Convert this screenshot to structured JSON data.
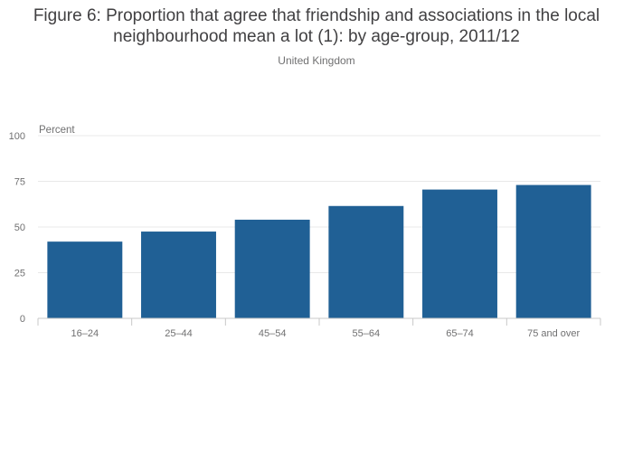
{
  "chart_data": {
    "type": "bar",
    "title": "Figure 6: Proportion that agree that friendship and associations in the local neighbourhood mean a lot (1): by age-group, 2011/12",
    "subtitle": "United Kingdom",
    "ylabel": "Percent",
    "xlabel": "",
    "categories": [
      "16–24",
      "25–44",
      "45–54",
      "55–64",
      "65–74",
      "75 and over"
    ],
    "values": [
      42,
      47.5,
      54,
      61.5,
      70.5,
      73
    ],
    "ylim": [
      0,
      100
    ],
    "yticks": [
      0,
      25,
      50,
      75,
      100
    ],
    "grid": true,
    "legend": "none",
    "bar_color": "#206095",
    "grid_color": "#e8e8e8",
    "axis_color": "#c8c8c8"
  }
}
